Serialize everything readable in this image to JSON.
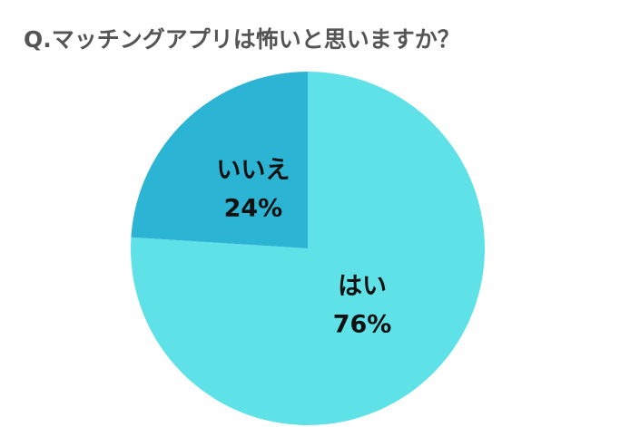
{
  "chart_data": {
    "type": "pie",
    "title": "Q.マッチングアプリは怖いと思いますか？",
    "categories": [
      "はい",
      "いいえ"
    ],
    "values": [
      76,
      24
    ],
    "value_labels": [
      "76%",
      "24%"
    ],
    "colors": [
      "#5fe1e8",
      "#2cb4d5"
    ]
  }
}
